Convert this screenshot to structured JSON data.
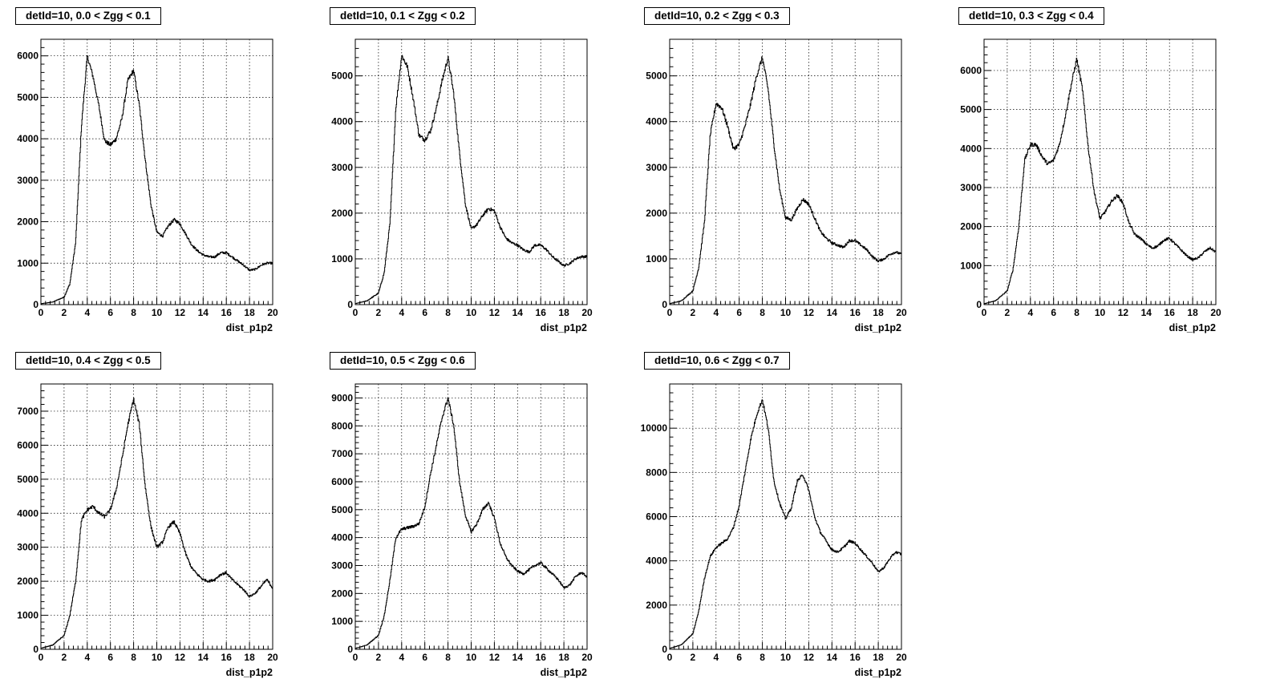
{
  "chart_data": [
    {
      "type": "line",
      "title": "detId=10, 0.0 < Zgg < 0.1",
      "xlabel": "dist_p1p2",
      "ylabel": "",
      "xlim": [
        0,
        20
      ],
      "ylim": [
        0,
        6400
      ],
      "yticks": [
        0,
        1000,
        2000,
        3000,
        4000,
        5000,
        6000
      ],
      "xticks": [
        0,
        2,
        4,
        6,
        8,
        10,
        12,
        14,
        16,
        18,
        20
      ],
      "grid": true,
      "x": [
        0,
        1,
        2,
        2.5,
        3,
        3.5,
        4,
        4.5,
        5,
        5.5,
        6,
        6.5,
        7,
        7.5,
        8,
        8.5,
        9,
        9.5,
        10,
        10.5,
        11,
        11.5,
        12,
        12.5,
        13,
        13.5,
        14,
        14.5,
        15,
        15.5,
        16,
        16.5,
        17,
        17.5,
        18,
        18.5,
        19,
        19.5,
        20
      ],
      "y": [
        20,
        60,
        180,
        500,
        1500,
        4300,
        6000,
        5500,
        4800,
        3950,
        3850,
        4000,
        4500,
        5400,
        5650,
        4800,
        3500,
        2400,
        1750,
        1650,
        1900,
        2050,
        1950,
        1700,
        1450,
        1300,
        1200,
        1150,
        1150,
        1250,
        1250,
        1150,
        1050,
        950,
        830,
        850,
        950,
        1000,
        1000
      ]
    },
    {
      "type": "line",
      "title": "detId=10, 0.1 < Zgg < 0.2",
      "xlabel": "dist_p1p2",
      "ylabel": "",
      "xlim": [
        0,
        20
      ],
      "ylim": [
        0,
        5800
      ],
      "yticks": [
        0,
        1000,
        2000,
        3000,
        4000,
        5000
      ],
      "xticks": [
        0,
        2,
        4,
        6,
        8,
        10,
        12,
        14,
        16,
        18,
        20
      ],
      "grid": true,
      "x": [
        0,
        1,
        2,
        2.5,
        3,
        3.5,
        4,
        4.5,
        5,
        5.5,
        6,
        6.5,
        7,
        7.5,
        8,
        8.5,
        9,
        9.5,
        10,
        10.5,
        11,
        11.5,
        12,
        12.5,
        13,
        13.5,
        14,
        14.5,
        15,
        15.5,
        16,
        16.5,
        17,
        17.5,
        18,
        18.5,
        19,
        19.5,
        20
      ],
      "y": [
        20,
        80,
        250,
        700,
        1800,
        4300,
        5450,
        5200,
        4500,
        3700,
        3600,
        3800,
        4300,
        4900,
        5400,
        4600,
        3300,
        2200,
        1650,
        1750,
        1950,
        2100,
        2050,
        1700,
        1450,
        1350,
        1300,
        1200,
        1150,
        1300,
        1300,
        1200,
        1050,
        950,
        850,
        900,
        1000,
        1050,
        1050
      ]
    },
    {
      "type": "line",
      "title": "detId=10, 0.2 < Zgg < 0.3",
      "xlabel": "dist_p1p2",
      "ylabel": "",
      "xlim": [
        0,
        20
      ],
      "ylim": [
        0,
        5800
      ],
      "yticks": [
        0,
        1000,
        2000,
        3000,
        4000,
        5000
      ],
      "xticks": [
        0,
        2,
        4,
        6,
        8,
        10,
        12,
        14,
        16,
        18,
        20
      ],
      "grid": true,
      "x": [
        0,
        1,
        2,
        2.5,
        3,
        3.5,
        4,
        4.5,
        5,
        5.5,
        6,
        6.5,
        7,
        7.5,
        8,
        8.5,
        9,
        9.5,
        10,
        10.5,
        11,
        11.5,
        12,
        12.5,
        13,
        13.5,
        14,
        14.5,
        15,
        15.5,
        16,
        16.5,
        17,
        17.5,
        18,
        18.5,
        19,
        19.5,
        20
      ],
      "y": [
        20,
        80,
        300,
        800,
        1800,
        3700,
        4400,
        4300,
        3900,
        3400,
        3500,
        3900,
        4400,
        5000,
        5400,
        4700,
        3500,
        2500,
        1900,
        1850,
        2100,
        2300,
        2200,
        1900,
        1600,
        1450,
        1350,
        1300,
        1250,
        1400,
        1400,
        1300,
        1200,
        1050,
        950,
        1000,
        1100,
        1150,
        1100
      ]
    },
    {
      "type": "line",
      "title": "detId=10, 0.3 < Zgg < 0.4",
      "xlabel": "dist_p1p2",
      "ylabel": "",
      "xlim": [
        0,
        20
      ],
      "ylim": [
        0,
        6800
      ],
      "yticks": [
        0,
        1000,
        2000,
        3000,
        4000,
        5000,
        6000
      ],
      "xticks": [
        0,
        2,
        4,
        6,
        8,
        10,
        12,
        14,
        16,
        18,
        20
      ],
      "grid": true,
      "x": [
        0,
        1,
        2,
        2.5,
        3,
        3.5,
        4,
        4.5,
        5,
        5.5,
        6,
        6.5,
        7,
        7.5,
        8,
        8.5,
        9,
        9.5,
        10,
        10.5,
        11,
        11.5,
        12,
        12.5,
        13,
        13.5,
        14,
        14.5,
        15,
        15.5,
        16,
        16.5,
        17,
        17.5,
        18,
        18.5,
        19,
        19.5,
        20
      ],
      "y": [
        20,
        100,
        350,
        900,
        2000,
        3700,
        4100,
        4100,
        3800,
        3600,
        3700,
        4100,
        4800,
        5600,
        6300,
        5500,
        4000,
        2900,
        2200,
        2400,
        2650,
        2800,
        2600,
        2100,
        1800,
        1700,
        1550,
        1450,
        1500,
        1650,
        1700,
        1550,
        1400,
        1250,
        1150,
        1200,
        1350,
        1450,
        1350
      ]
    },
    {
      "type": "line",
      "title": "detId=10, 0.4 < Zgg < 0.5",
      "xlabel": "dist_p1p2",
      "ylabel": "",
      "xlim": [
        0,
        20
      ],
      "ylim": [
        0,
        7800
      ],
      "yticks": [
        0,
        1000,
        2000,
        3000,
        4000,
        5000,
        6000,
        7000
      ],
      "xticks": [
        0,
        2,
        4,
        6,
        8,
        10,
        12,
        14,
        16,
        18,
        20
      ],
      "grid": true,
      "x": [
        0,
        1,
        2,
        2.5,
        3,
        3.5,
        4,
        4.5,
        5,
        5.5,
        6,
        6.5,
        7,
        7.5,
        8,
        8.5,
        9,
        9.5,
        10,
        10.5,
        11,
        11.5,
        12,
        12.5,
        13,
        13.5,
        14,
        14.5,
        15,
        15.5,
        16,
        16.5,
        17,
        17.5,
        18,
        18.5,
        19,
        19.5,
        20
      ],
      "y": [
        30,
        120,
        400,
        1000,
        2000,
        3800,
        4100,
        4200,
        4000,
        3900,
        4100,
        4700,
        5600,
        6600,
        7350,
        6600,
        4800,
        3600,
        3000,
        3150,
        3600,
        3750,
        3400,
        2800,
        2400,
        2200,
        2050,
        2000,
        2050,
        2200,
        2250,
        2050,
        1900,
        1750,
        1550,
        1650,
        1850,
        2050,
        1800
      ]
    },
    {
      "type": "line",
      "title": "detId=10, 0.5 < Zgg < 0.6",
      "xlabel": "dist_p1p2",
      "ylabel": "",
      "xlim": [
        0,
        20
      ],
      "ylim": [
        0,
        9500
      ],
      "yticks": [
        0,
        1000,
        2000,
        3000,
        4000,
        5000,
        6000,
        7000,
        8000,
        9000
      ],
      "xticks": [
        0,
        2,
        4,
        6,
        8,
        10,
        12,
        14,
        16,
        18,
        20
      ],
      "grid": true,
      "x": [
        0,
        1,
        2,
        2.5,
        3,
        3.5,
        4,
        4.5,
        5,
        5.5,
        6,
        6.5,
        7,
        7.5,
        8,
        8.5,
        9,
        9.5,
        10,
        10.5,
        11,
        11.5,
        12,
        12.5,
        13,
        13.5,
        14,
        14.5,
        15,
        15.5,
        16,
        16.5,
        17,
        17.5,
        18,
        18.5,
        19,
        19.5,
        20
      ],
      "y": [
        30,
        150,
        500,
        1200,
        2500,
        4000,
        4300,
        4350,
        4400,
        4500,
        5100,
        6300,
        7300,
        8300,
        9000,
        8000,
        6000,
        4800,
        4200,
        4500,
        5000,
        5250,
        4700,
        3800,
        3300,
        3000,
        2800,
        2700,
        2850,
        3000,
        3100,
        2900,
        2700,
        2500,
        2200,
        2300,
        2600,
        2750,
        2600
      ]
    },
    {
      "type": "line",
      "title": "detId=10, 0.6 < Zgg < 0.7",
      "xlabel": "dist_p1p2",
      "ylabel": "",
      "xlim": [
        0,
        20
      ],
      "ylim": [
        0,
        12000
      ],
      "yticks": [
        0,
        2000,
        4000,
        6000,
        8000,
        10000
      ],
      "xticks": [
        0,
        2,
        4,
        6,
        8,
        10,
        12,
        14,
        16,
        18,
        20
      ],
      "grid": true,
      "x": [
        0,
        1,
        2,
        2.5,
        3,
        3.5,
        4,
        4.5,
        5,
        5.5,
        6,
        6.5,
        7,
        7.5,
        8,
        8.5,
        9,
        9.5,
        10,
        10.5,
        11,
        11.5,
        12,
        12.5,
        13,
        13.5,
        14,
        14.5,
        15,
        15.5,
        16,
        16.5,
        17,
        17.5,
        18,
        18.5,
        19,
        19.5,
        20
      ],
      "y": [
        40,
        200,
        700,
        1700,
        3200,
        4200,
        4600,
        4800,
        5000,
        5500,
        6500,
        8000,
        9500,
        10600,
        11300,
        10000,
        7600,
        6600,
        5900,
        6400,
        7600,
        7900,
        7200,
        6000,
        5300,
        4900,
        4500,
        4400,
        4600,
        4900,
        4800,
        4500,
        4200,
        3900,
        3500,
        3700,
        4100,
        4400,
        4300
      ]
    }
  ]
}
